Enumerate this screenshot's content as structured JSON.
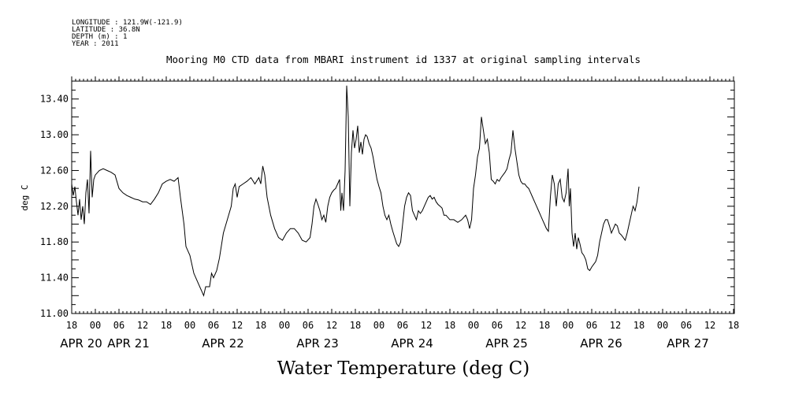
{
  "metadata": {
    "longitude": "LONGITUDE : 121.9W(-121.9)",
    "latitude": "LATITUDE : 36.8N",
    "depth": "DEPTH (m) : 1",
    "year": "YEAR : 2011"
  },
  "chart_data": {
    "type": "line",
    "title": "Mooring M0 CTD data from MBARI instrument id 1337 at original sampling intervals",
    "xlabel": "Water Temperature (deg C)",
    "ylabel": "deg C",
    "ylim": [
      11.0,
      13.6
    ],
    "xlim_hours": [
      0,
      168
    ],
    "y_ticks": [
      "11.00",
      "11.40",
      "11.80",
      "12.20",
      "12.60",
      "13.00",
      "13.40"
    ],
    "y_tick_values": [
      11.0,
      11.4,
      11.8,
      12.2,
      12.6,
      13.0,
      13.4
    ],
    "x_ticks": [
      "18",
      "00",
      "06",
      "12",
      "18",
      "00",
      "06",
      "12",
      "18",
      "00",
      "06",
      "12",
      "18",
      "00",
      "06",
      "12",
      "18",
      "00",
      "06",
      "12",
      "18",
      "00",
      "06",
      "12",
      "18",
      "00",
      "06",
      "12",
      "18"
    ],
    "day_labels": [
      {
        "label": "APR 20",
        "hour": 0
      },
      {
        "label": "APR 21",
        "hour": 12
      },
      {
        "label": "APR 22",
        "hour": 36
      },
      {
        "label": "APR 23",
        "hour": 60
      },
      {
        "label": "APR 24",
        "hour": 84
      },
      {
        "label": "APR 25",
        "hour": 108
      },
      {
        "label": "APR 26",
        "hour": 132
      },
      {
        "label": "APR 27",
        "hour": 154
      }
    ],
    "grid": false,
    "series": [
      {
        "points": [
          [
            0.0,
            12.45
          ],
          [
            0.4,
            12.32
          ],
          [
            0.8,
            12.42
          ],
          [
            1.2,
            12.25
          ],
          [
            1.6,
            12.1
          ],
          [
            2.0,
            12.28
          ],
          [
            2.4,
            12.05
          ],
          [
            2.8,
            12.2
          ],
          [
            3.2,
            12.0
          ],
          [
            3.6,
            12.35
          ],
          [
            4.0,
            12.5
          ],
          [
            4.4,
            12.12
          ],
          [
            4.8,
            12.82
          ],
          [
            5.2,
            12.3
          ],
          [
            5.6,
            12.5
          ],
          [
            6.0,
            12.55
          ],
          [
            7.0,
            12.6
          ],
          [
            8.0,
            12.62
          ],
          [
            9.0,
            12.6
          ],
          [
            10.0,
            12.58
          ],
          [
            11.0,
            12.55
          ],
          [
            12.0,
            12.4
          ],
          [
            13.0,
            12.35
          ],
          [
            14.0,
            12.32
          ],
          [
            15.0,
            12.3
          ],
          [
            16.0,
            12.28
          ],
          [
            17.0,
            12.27
          ],
          [
            18.0,
            12.25
          ],
          [
            19.0,
            12.25
          ],
          [
            20.0,
            12.22
          ],
          [
            21.0,
            12.28
          ],
          [
            22.0,
            12.35
          ],
          [
            23.0,
            12.45
          ],
          [
            24.0,
            12.48
          ],
          [
            25.0,
            12.5
          ],
          [
            26.0,
            12.48
          ],
          [
            27.0,
            12.52
          ],
          [
            27.6,
            12.3
          ],
          [
            28.5,
            12.0
          ],
          [
            29.0,
            11.75
          ],
          [
            30.0,
            11.65
          ],
          [
            31.0,
            11.45
          ],
          [
            32.0,
            11.35
          ],
          [
            33.0,
            11.25
          ],
          [
            33.5,
            11.2
          ],
          [
            34.0,
            11.3
          ],
          [
            35.0,
            11.3
          ],
          [
            35.5,
            11.45
          ],
          [
            36.0,
            11.4
          ],
          [
            36.8,
            11.48
          ],
          [
            37.5,
            11.62
          ],
          [
            38.5,
            11.9
          ],
          [
            39.5,
            12.05
          ],
          [
            40.5,
            12.2
          ],
          [
            41.0,
            12.4
          ],
          [
            41.5,
            12.45
          ],
          [
            42.0,
            12.3
          ],
          [
            42.5,
            12.42
          ],
          [
            43.5,
            12.45
          ],
          [
            44.5,
            12.48
          ],
          [
            45.5,
            12.52
          ],
          [
            46.5,
            12.45
          ],
          [
            47.5,
            12.52
          ],
          [
            48.0,
            12.45
          ],
          [
            48.5,
            12.65
          ],
          [
            49.0,
            12.55
          ],
          [
            49.6,
            12.3
          ],
          [
            50.5,
            12.1
          ],
          [
            51.5,
            11.95
          ],
          [
            52.5,
            11.85
          ],
          [
            53.5,
            11.82
          ],
          [
            54.5,
            11.9
          ],
          [
            55.5,
            11.95
          ],
          [
            56.5,
            11.95
          ],
          [
            57.5,
            11.9
          ],
          [
            58.5,
            11.82
          ],
          [
            59.5,
            11.8
          ],
          [
            60.5,
            11.85
          ],
          [
            61.0,
            12.0
          ],
          [
            61.5,
            12.2
          ],
          [
            62.0,
            12.28
          ],
          [
            62.5,
            12.22
          ],
          [
            63.0,
            12.15
          ],
          [
            63.5,
            12.05
          ],
          [
            64.0,
            12.1
          ],
          [
            64.5,
            12.02
          ],
          [
            65.0,
            12.2
          ],
          [
            65.5,
            12.3
          ],
          [
            66.0,
            12.35
          ],
          [
            66.5,
            12.38
          ],
          [
            67.0,
            12.4
          ],
          [
            67.5,
            12.45
          ],
          [
            68.0,
            12.5
          ],
          [
            68.3,
            12.15
          ],
          [
            68.6,
            12.35
          ],
          [
            69.0,
            12.15
          ],
          [
            69.4,
            12.6
          ],
          [
            69.8,
            13.55
          ],
          [
            70.2,
            13.2
          ],
          [
            70.6,
            12.2
          ],
          [
            71.0,
            12.8
          ],
          [
            71.4,
            13.05
          ],
          [
            71.8,
            12.85
          ],
          [
            72.2,
            12.95
          ],
          [
            72.6,
            13.1
          ],
          [
            73.0,
            12.8
          ],
          [
            73.4,
            12.92
          ],
          [
            73.8,
            12.78
          ],
          [
            74.2,
            12.95
          ],
          [
            74.6,
            13.0
          ],
          [
            75.0,
            12.98
          ],
          [
            75.5,
            12.9
          ],
          [
            76.0,
            12.85
          ],
          [
            76.5,
            12.75
          ],
          [
            77.0,
            12.62
          ],
          [
            77.5,
            12.5
          ],
          [
            78.0,
            12.42
          ],
          [
            78.5,
            12.35
          ],
          [
            79.0,
            12.2
          ],
          [
            79.5,
            12.1
          ],
          [
            80.0,
            12.05
          ],
          [
            80.5,
            12.1
          ],
          [
            81.0,
            12.0
          ],
          [
            81.5,
            11.92
          ],
          [
            82.0,
            11.85
          ],
          [
            82.5,
            11.78
          ],
          [
            83.0,
            11.75
          ],
          [
            83.5,
            11.8
          ],
          [
            84.0,
            12.0
          ],
          [
            84.5,
            12.2
          ],
          [
            85.0,
            12.3
          ],
          [
            85.5,
            12.35
          ],
          [
            86.0,
            12.32
          ],
          [
            86.5,
            12.15
          ],
          [
            87.0,
            12.1
          ],
          [
            87.5,
            12.05
          ],
          [
            88.0,
            12.15
          ],
          [
            88.5,
            12.12
          ],
          [
            89.0,
            12.15
          ],
          [
            89.5,
            12.2
          ],
          [
            90.0,
            12.25
          ],
          [
            90.5,
            12.3
          ],
          [
            91.0,
            12.32
          ],
          [
            91.5,
            12.28
          ],
          [
            92.0,
            12.3
          ],
          [
            92.5,
            12.25
          ],
          [
            93.0,
            12.22
          ],
          [
            93.5,
            12.2
          ],
          [
            94.0,
            12.18
          ],
          [
            94.5,
            12.1
          ],
          [
            95.0,
            12.1
          ],
          [
            96.0,
            12.05
          ],
          [
            97.0,
            12.05
          ],
          [
            98.0,
            12.02
          ],
          [
            99.0,
            12.05
          ],
          [
            100.0,
            12.1
          ],
          [
            100.5,
            12.05
          ],
          [
            101.0,
            11.95
          ],
          [
            101.5,
            12.05
          ],
          [
            102.0,
            12.4
          ],
          [
            102.5,
            12.55
          ],
          [
            103.0,
            12.75
          ],
          [
            103.5,
            12.85
          ],
          [
            104.0,
            13.2
          ],
          [
            104.5,
            13.05
          ],
          [
            105.0,
            12.9
          ],
          [
            105.5,
            12.95
          ],
          [
            106.0,
            12.8
          ],
          [
            106.5,
            12.5
          ],
          [
            107.0,
            12.48
          ],
          [
            107.5,
            12.45
          ],
          [
            108.0,
            12.5
          ],
          [
            108.5,
            12.48
          ],
          [
            109.0,
            12.52
          ],
          [
            109.5,
            12.55
          ],
          [
            110.0,
            12.58
          ],
          [
            110.5,
            12.62
          ],
          [
            111.0,
            12.72
          ],
          [
            111.5,
            12.8
          ],
          [
            112.0,
            13.05
          ],
          [
            112.5,
            12.85
          ],
          [
            113.0,
            12.7
          ],
          [
            113.5,
            12.55
          ],
          [
            114.0,
            12.48
          ],
          [
            114.5,
            12.45
          ],
          [
            115.0,
            12.45
          ],
          [
            115.5,
            12.42
          ],
          [
            116.0,
            12.4
          ],
          [
            116.5,
            12.35
          ],
          [
            117.0,
            12.3
          ],
          [
            117.5,
            12.25
          ],
          [
            118.0,
            12.2
          ],
          [
            118.5,
            12.15
          ],
          [
            119.0,
            12.1
          ],
          [
            119.5,
            12.05
          ],
          [
            120.0,
            12.0
          ],
          [
            120.5,
            11.95
          ],
          [
            121.0,
            11.92
          ],
          [
            121.5,
            12.3
          ],
          [
            122.0,
            12.55
          ],
          [
            122.5,
            12.45
          ],
          [
            123.0,
            12.2
          ],
          [
            123.5,
            12.45
          ],
          [
            124.0,
            12.5
          ],
          [
            124.5,
            12.3
          ],
          [
            125.0,
            12.25
          ],
          [
            125.5,
            12.35
          ],
          [
            126.0,
            12.62
          ],
          [
            126.3,
            12.2
          ],
          [
            126.6,
            12.4
          ],
          [
            127.0,
            11.9
          ],
          [
            127.4,
            11.75
          ],
          [
            127.8,
            11.9
          ],
          [
            128.2,
            11.72
          ],
          [
            128.6,
            11.85
          ],
          [
            129.0,
            11.78
          ],
          [
            129.5,
            11.68
          ],
          [
            130.0,
            11.65
          ],
          [
            130.5,
            11.6
          ],
          [
            131.0,
            11.5
          ],
          [
            131.5,
            11.48
          ],
          [
            132.0,
            11.52
          ],
          [
            132.5,
            11.55
          ],
          [
            133.0,
            11.58
          ],
          [
            133.5,
            11.65
          ],
          [
            134.0,
            11.8
          ],
          [
            134.5,
            11.9
          ],
          [
            135.0,
            12.0
          ],
          [
            135.5,
            12.05
          ],
          [
            136.0,
            12.05
          ],
          [
            136.5,
            11.98
          ],
          [
            137.0,
            11.9
          ],
          [
            137.5,
            11.95
          ],
          [
            138.0,
            12.0
          ],
          [
            138.5,
            11.98
          ],
          [
            139.0,
            11.9
          ],
          [
            139.5,
            11.88
          ],
          [
            140.0,
            11.85
          ],
          [
            140.5,
            11.82
          ],
          [
            141.0,
            11.9
          ],
          [
            141.5,
            12.0
          ],
          [
            142.0,
            12.1
          ],
          [
            142.5,
            12.2
          ],
          [
            143.0,
            12.15
          ],
          [
            143.5,
            12.25
          ],
          [
            144.0,
            12.42
          ]
        ]
      }
    ]
  }
}
